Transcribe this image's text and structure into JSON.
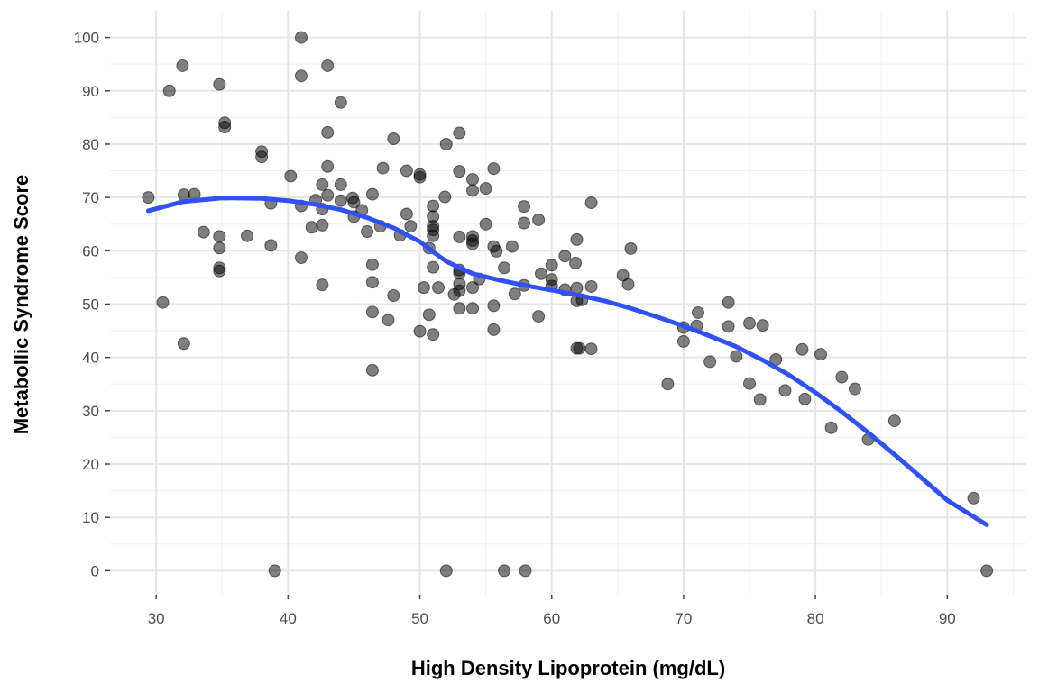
{
  "chart_data": {
    "type": "scatter",
    "title": "",
    "xlabel": "High Density Lipoprotein (mg/dL)",
    "ylabel": "Metabollic Syndrome Score",
    "xlim": [
      26.5,
      96.0
    ],
    "ylim": [
      -4.5,
      105.0
    ],
    "x_ticks": [
      30,
      40,
      50,
      60,
      70,
      80,
      90
    ],
    "y_ticks": [
      0,
      10,
      20,
      30,
      40,
      50,
      60,
      70,
      80,
      90,
      100
    ],
    "grid": true,
    "point_color": "#000000",
    "smooth_color": "#3050f8",
    "points": [
      [
        29.4,
        70.0
      ],
      [
        30.5,
        50.3
      ],
      [
        31.0,
        90.0
      ],
      [
        32.0,
        94.7
      ],
      [
        32.1,
        70.5
      ],
      [
        32.1,
        42.6
      ],
      [
        32.9,
        70.6
      ],
      [
        33.6,
        63.5
      ],
      [
        34.8,
        91.2
      ],
      [
        34.8,
        62.7
      ],
      [
        34.8,
        60.5
      ],
      [
        34.8,
        56.8
      ],
      [
        34.8,
        56.2
      ],
      [
        35.2,
        84.0
      ],
      [
        35.2,
        83.2
      ],
      [
        36.9,
        62.8
      ],
      [
        38.0,
        78.6
      ],
      [
        38.0,
        77.6
      ],
      [
        38.7,
        68.9
      ],
      [
        38.7,
        61.0
      ],
      [
        39.0,
        0.0
      ],
      [
        40.2,
        74.0
      ],
      [
        41.0,
        100.0
      ],
      [
        41.0,
        92.8
      ],
      [
        41.0,
        68.4
      ],
      [
        41.0,
        58.7
      ],
      [
        41.8,
        64.4
      ],
      [
        42.1,
        69.5
      ],
      [
        42.6,
        72.4
      ],
      [
        42.6,
        67.8
      ],
      [
        42.6,
        64.8
      ],
      [
        42.6,
        53.6
      ],
      [
        43.0,
        94.7
      ],
      [
        43.0,
        82.2
      ],
      [
        43.0,
        75.8
      ],
      [
        43.0,
        70.4
      ],
      [
        44.0,
        87.8
      ],
      [
        44.0,
        72.4
      ],
      [
        44.0,
        69.4
      ],
      [
        44.9,
        69.9
      ],
      [
        45.0,
        69.1
      ],
      [
        45.0,
        66.4
      ],
      [
        45.6,
        67.6
      ],
      [
        46.0,
        63.6
      ],
      [
        46.4,
        70.6
      ],
      [
        46.4,
        57.4
      ],
      [
        46.4,
        54.1
      ],
      [
        46.4,
        48.5
      ],
      [
        46.4,
        37.6
      ],
      [
        47.0,
        64.6
      ],
      [
        47.2,
        75.5
      ],
      [
        47.6,
        47.0
      ],
      [
        48.0,
        81.0
      ],
      [
        48.0,
        51.6
      ],
      [
        48.5,
        62.9
      ],
      [
        49.0,
        75.0
      ],
      [
        49.0,
        66.9
      ],
      [
        49.3,
        64.6
      ],
      [
        50.0,
        74.3
      ],
      [
        50.0,
        73.8
      ],
      [
        50.0,
        44.9
      ],
      [
        50.3,
        53.1
      ],
      [
        50.7,
        60.5
      ],
      [
        50.7,
        48.0
      ],
      [
        51.0,
        68.4
      ],
      [
        51.0,
        66.4
      ],
      [
        51.0,
        64.6
      ],
      [
        51.0,
        63.9
      ],
      [
        51.0,
        62.8
      ],
      [
        51.0,
        56.9
      ],
      [
        51.0,
        44.3
      ],
      [
        51.4,
        53.1
      ],
      [
        51.9,
        70.1
      ],
      [
        52.0,
        80.0
      ],
      [
        52.0,
        0.0
      ],
      [
        52.6,
        51.8
      ],
      [
        53.0,
        82.1
      ],
      [
        53.0,
        74.9
      ],
      [
        53.0,
        62.6
      ],
      [
        53.0,
        56.4
      ],
      [
        53.0,
        55.8
      ],
      [
        53.0,
        53.8
      ],
      [
        53.0,
        52.5
      ],
      [
        53.0,
        49.2
      ],
      [
        54.0,
        73.4
      ],
      [
        54.0,
        71.3
      ],
      [
        54.0,
        62.7
      ],
      [
        54.0,
        61.9
      ],
      [
        54.0,
        61.3
      ],
      [
        54.0,
        53.1
      ],
      [
        54.0,
        49.2
      ],
      [
        54.5,
        54.7
      ],
      [
        55.0,
        71.7
      ],
      [
        55.0,
        65.0
      ],
      [
        55.6,
        75.4
      ],
      [
        55.6,
        60.8
      ],
      [
        55.6,
        49.7
      ],
      [
        55.6,
        45.2
      ],
      [
        55.8,
        59.9
      ],
      [
        56.4,
        56.8
      ],
      [
        56.4,
        0.0
      ],
      [
        57.0,
        60.8
      ],
      [
        57.2,
        51.9
      ],
      [
        57.9,
        68.3
      ],
      [
        57.9,
        65.2
      ],
      [
        57.9,
        53.5
      ],
      [
        58.0,
        0.0
      ],
      [
        59.0,
        65.8
      ],
      [
        59.0,
        47.7
      ],
      [
        59.2,
        55.7
      ],
      [
        60.0,
        57.3
      ],
      [
        60.0,
        54.6
      ],
      [
        60.0,
        53.4
      ],
      [
        61.0,
        59.0
      ],
      [
        61.0,
        52.7
      ],
      [
        61.8,
        57.7
      ],
      [
        61.9,
        62.1
      ],
      [
        61.9,
        53.0
      ],
      [
        61.9,
        50.6
      ],
      [
        61.9,
        41.7
      ],
      [
        62.1,
        41.7
      ],
      [
        62.3,
        50.8
      ],
      [
        63.0,
        69.0
      ],
      [
        63.0,
        53.3
      ],
      [
        63.0,
        41.6
      ],
      [
        65.4,
        55.4
      ],
      [
        65.8,
        53.7
      ],
      [
        66.0,
        60.4
      ],
      [
        68.8,
        35.0
      ],
      [
        70.0,
        45.6
      ],
      [
        70.0,
        43.0
      ],
      [
        71.0,
        45.9
      ],
      [
        71.1,
        48.4
      ],
      [
        72.0,
        39.2
      ],
      [
        73.4,
        50.3
      ],
      [
        73.4,
        45.8
      ],
      [
        74.0,
        40.2
      ],
      [
        75.0,
        46.4
      ],
      [
        75.0,
        35.1
      ],
      [
        75.8,
        32.1
      ],
      [
        76.0,
        46.0
      ],
      [
        77.0,
        39.6
      ],
      [
        77.7,
        33.8
      ],
      [
        79.0,
        41.5
      ],
      [
        79.2,
        32.2
      ],
      [
        80.4,
        40.6
      ],
      [
        81.2,
        26.8
      ],
      [
        82.0,
        36.3
      ],
      [
        83.0,
        34.1
      ],
      [
        84.0,
        24.6
      ],
      [
        86.0,
        28.1
      ],
      [
        92.0,
        13.6
      ],
      [
        93.0,
        0.0
      ]
    ],
    "smooth": [
      [
        29.4,
        67.5
      ],
      [
        32.0,
        69.2
      ],
      [
        35.0,
        69.9
      ],
      [
        38.0,
        69.8
      ],
      [
        40.0,
        69.4
      ],
      [
        42.0,
        68.7
      ],
      [
        44.0,
        67.7
      ],
      [
        46.0,
        66.2
      ],
      [
        48.0,
        64.3
      ],
      [
        50.0,
        61.7
      ],
      [
        51.0,
        59.8
      ],
      [
        52.0,
        58.0
      ],
      [
        54.0,
        55.7
      ],
      [
        56.0,
        54.5
      ],
      [
        58.0,
        53.5
      ],
      [
        60.0,
        52.6
      ],
      [
        62.0,
        51.7
      ],
      [
        64.0,
        50.6
      ],
      [
        66.0,
        49.2
      ],
      [
        68.0,
        47.6
      ],
      [
        70.0,
        45.9
      ],
      [
        72.0,
        44.0
      ],
      [
        74.0,
        42.0
      ],
      [
        76.0,
        39.5
      ],
      [
        78.0,
        36.7
      ],
      [
        80.0,
        33.4
      ],
      [
        82.0,
        29.8
      ],
      [
        84.0,
        25.9
      ],
      [
        86.0,
        21.8
      ],
      [
        88.0,
        17.5
      ],
      [
        90.0,
        13.2
      ],
      [
        93.0,
        8.6
      ]
    ]
  }
}
